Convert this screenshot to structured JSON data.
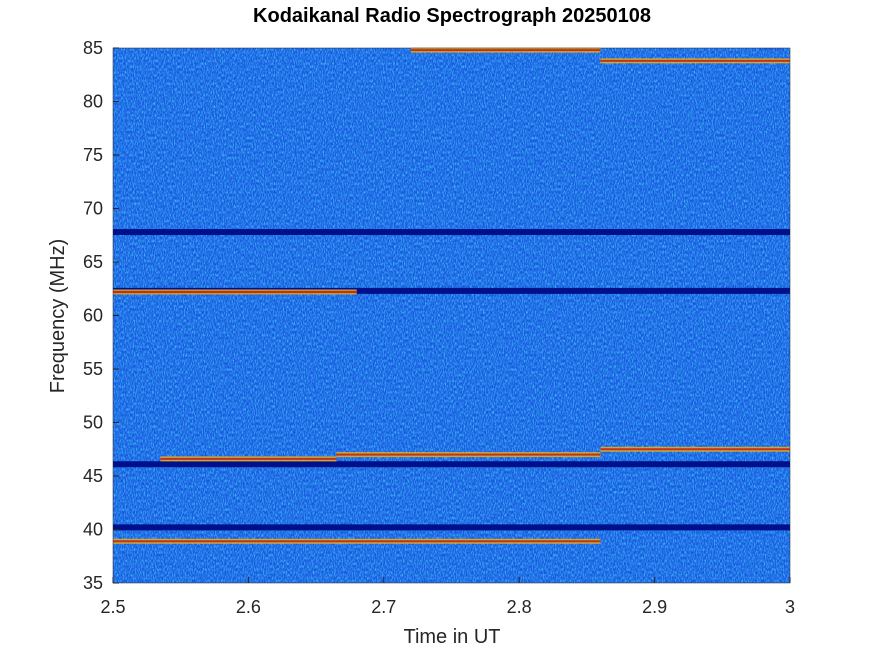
{
  "chart_data": {
    "type": "heatmap",
    "title": "Kodaikanal Radio Spectrograph  20250108",
    "xlabel": "Time in UT",
    "ylabel": "Frequency (MHz)",
    "xlim": [
      2.5,
      3.0
    ],
    "ylim": [
      35,
      85
    ],
    "xticks": [
      "2.5",
      "2.6",
      "2.7",
      "2.8",
      "2.9",
      "3"
    ],
    "yticks": [
      "35",
      "40",
      "45",
      "50",
      "55",
      "60",
      "65",
      "70",
      "75",
      "80",
      "85"
    ],
    "colormap": "jet",
    "background_color": "#1a56e0",
    "dark_bands_mhz": [
      40.2,
      46.1,
      62.3,
      67.8
    ],
    "bright_bands": [
      {
        "freq_mhz": 38.9,
        "t_start": 2.5,
        "t_end": 2.86
      },
      {
        "freq_mhz": 46.6,
        "t_start": 2.535,
        "t_end": 2.665
      },
      {
        "freq_mhz": 47.0,
        "t_start": 2.665,
        "t_end": 2.86
      },
      {
        "freq_mhz": 47.5,
        "t_start": 2.86,
        "t_end": 3.0
      },
      {
        "freq_mhz": 62.2,
        "t_start": 2.5,
        "t_end": 2.68
      },
      {
        "freq_mhz": 84.8,
        "t_start": 2.72,
        "t_end": 2.86
      },
      {
        "freq_mhz": 83.8,
        "t_start": 2.86,
        "t_end": 3.0
      }
    ]
  }
}
